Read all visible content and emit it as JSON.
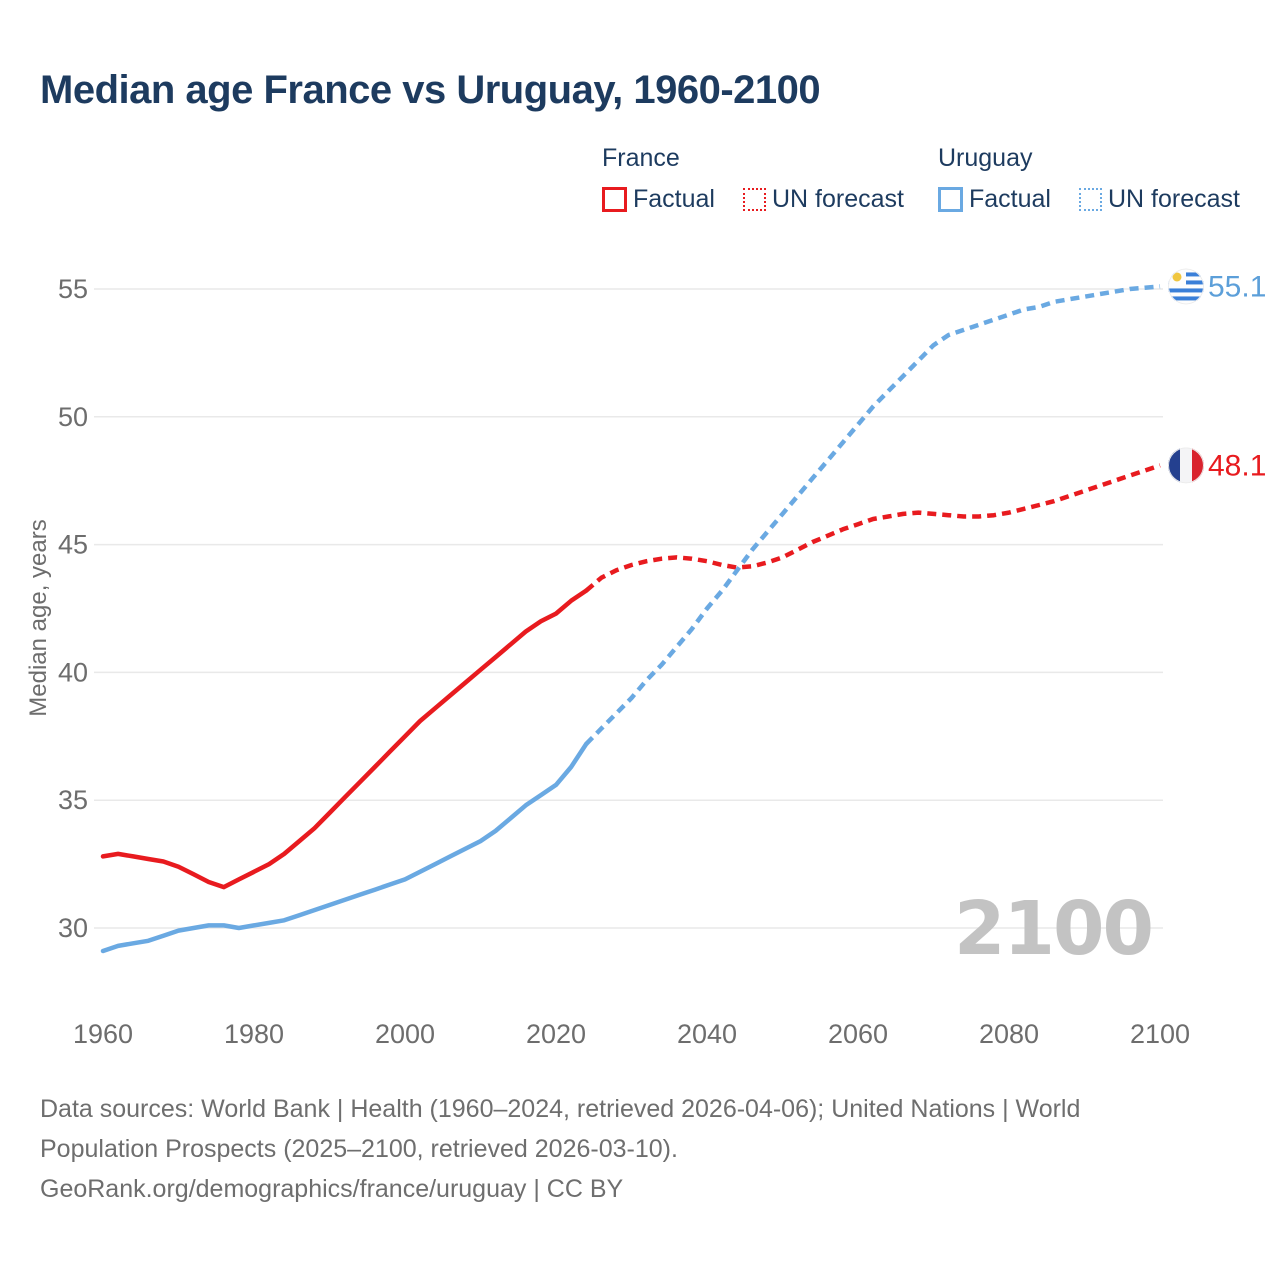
{
  "title": "Median age France vs Uruguay, 1960-2100",
  "watermark": "2100",
  "legend": {
    "groups": [
      {
        "name": "France",
        "items": [
          {
            "label": "Factual",
            "style": "solid",
            "color": "#e81b1f"
          },
          {
            "label": "UN forecast",
            "style": "dashed",
            "color": "#e81b1f"
          }
        ]
      },
      {
        "name": "Uruguay",
        "items": [
          {
            "label": "Factual",
            "style": "solid",
            "color": "#6aa9e2"
          },
          {
            "label": "UN forecast",
            "style": "dashed",
            "color": "#6aa9e2"
          }
        ]
      }
    ]
  },
  "end_labels": [
    {
      "series": "Uruguay",
      "value": "55.1",
      "color": "#5c9fd9",
      "flag": "uruguay"
    },
    {
      "series": "France",
      "value": "48.1",
      "color": "#e81b1f",
      "flag": "france"
    }
  ],
  "chart_data": {
    "type": "line",
    "title": "Median age France vs Uruguay, 1960-2100",
    "xlabel": "",
    "ylabel": "Median age, years",
    "xlim": [
      1960,
      2100
    ],
    "ylim": [
      28.5,
      56.5
    ],
    "xticks": [
      1960,
      1980,
      2000,
      2020,
      2040,
      2060,
      2080,
      2100
    ],
    "yticks": [
      30,
      35,
      40,
      45,
      50,
      55
    ],
    "grid": "horizontal",
    "legend_position": "top-right",
    "series": [
      {
        "name": "France factual",
        "color": "#e81b1f",
        "style": "solid",
        "x": [
          1960,
          1962,
          1964,
          1966,
          1968,
          1970,
          1972,
          1974,
          1976,
          1978,
          1980,
          1982,
          1984,
          1986,
          1988,
          1990,
          1992,
          1994,
          1996,
          1998,
          2000,
          2002,
          2004,
          2006,
          2008,
          2010,
          2012,
          2014,
          2016,
          2018,
          2020,
          2022,
          2024
        ],
        "y": [
          32.8,
          32.9,
          32.8,
          32.7,
          32.6,
          32.4,
          32.1,
          31.8,
          31.6,
          31.9,
          32.2,
          32.5,
          32.9,
          33.4,
          33.9,
          34.5,
          35.1,
          35.7,
          36.3,
          36.9,
          37.5,
          38.1,
          38.6,
          39.1,
          39.6,
          40.1,
          40.6,
          41.1,
          41.6,
          42.0,
          42.3,
          42.8,
          43.2
        ]
      },
      {
        "name": "France UN forecast",
        "color": "#e81b1f",
        "style": "dashed",
        "x": [
          2024,
          2026,
          2028,
          2030,
          2032,
          2034,
          2036,
          2038,
          2040,
          2042,
          2044,
          2046,
          2048,
          2050,
          2052,
          2054,
          2056,
          2058,
          2060,
          2062,
          2064,
          2066,
          2068,
          2070,
          2072,
          2074,
          2076,
          2078,
          2080,
          2082,
          2084,
          2086,
          2088,
          2090,
          2092,
          2094,
          2096,
          2098,
          2100
        ],
        "y": [
          43.2,
          43.7,
          44.0,
          44.2,
          44.35,
          44.45,
          44.5,
          44.45,
          44.35,
          44.2,
          44.1,
          44.15,
          44.3,
          44.5,
          44.8,
          45.1,
          45.35,
          45.6,
          45.8,
          46.0,
          46.1,
          46.2,
          46.25,
          46.2,
          46.15,
          46.1,
          46.1,
          46.15,
          46.25,
          46.4,
          46.55,
          46.7,
          46.9,
          47.1,
          47.3,
          47.5,
          47.7,
          47.9,
          48.1
        ]
      },
      {
        "name": "Uruguay factual",
        "color": "#6aa9e2",
        "style": "solid",
        "x": [
          1960,
          1962,
          1964,
          1966,
          1968,
          1970,
          1972,
          1974,
          1976,
          1978,
          1980,
          1982,
          1984,
          1986,
          1988,
          1990,
          1992,
          1994,
          1996,
          1998,
          2000,
          2002,
          2004,
          2006,
          2008,
          2010,
          2012,
          2014,
          2016,
          2018,
          2020,
          2022,
          2024
        ],
        "y": [
          29.1,
          29.3,
          29.4,
          29.5,
          29.7,
          29.9,
          30.0,
          30.1,
          30.1,
          30.0,
          30.1,
          30.2,
          30.3,
          30.5,
          30.7,
          30.9,
          31.1,
          31.3,
          31.5,
          31.7,
          31.9,
          32.2,
          32.5,
          32.8,
          33.1,
          33.4,
          33.8,
          34.3,
          34.8,
          35.2,
          35.6,
          36.3,
          37.2
        ]
      },
      {
        "name": "Uruguay UN forecast",
        "color": "#6aa9e2",
        "style": "dashed",
        "x": [
          2024,
          2026,
          2028,
          2030,
          2032,
          2034,
          2036,
          2038,
          2040,
          2042,
          2044,
          2046,
          2048,
          2050,
          2052,
          2054,
          2056,
          2058,
          2060,
          2062,
          2064,
          2066,
          2068,
          2070,
          2072,
          2074,
          2076,
          2078,
          2080,
          2082,
          2084,
          2086,
          2088,
          2090,
          2092,
          2094,
          2096,
          2098,
          2100
        ],
        "y": [
          37.2,
          37.8,
          38.4,
          39.0,
          39.7,
          40.3,
          41.0,
          41.7,
          42.5,
          43.2,
          44.0,
          44.8,
          45.5,
          46.2,
          46.9,
          47.6,
          48.3,
          49.0,
          49.7,
          50.4,
          51.0,
          51.6,
          52.2,
          52.8,
          53.2,
          53.4,
          53.6,
          53.8,
          54.0,
          54.2,
          54.3,
          54.5,
          54.6,
          54.7,
          54.8,
          54.9,
          55.0,
          55.05,
          55.1
        ]
      }
    ]
  },
  "colors": {
    "title_text": "#1d3b5f",
    "axis_text": "#6d6d6d",
    "gridline": "#e9e9e9",
    "watermark": "#c3c3c3",
    "france_red": "#e81b1f",
    "uruguay_blue": "#6aa9e2"
  },
  "footer": {
    "lines": [
      "Data sources: World Bank | Health (1960–2024, retrieved 2026-04-06); United Nations | World",
      "Population Prospects (2025–2100, retrieved 2026-03-10).",
      "GeoRank.org/demographics/france/uruguay | CC BY"
    ]
  }
}
